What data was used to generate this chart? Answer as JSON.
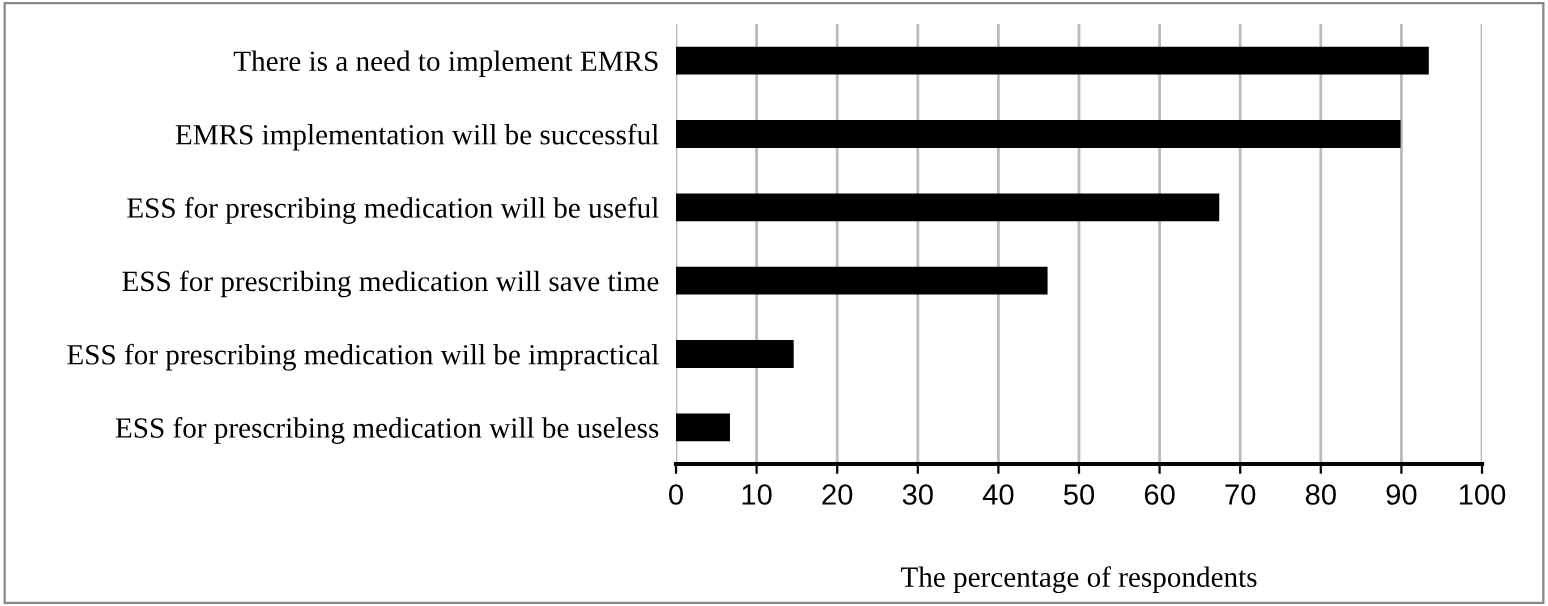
{
  "chart_data": {
    "type": "bar",
    "orientation": "horizontal",
    "xlabel": "The percentage of respondents",
    "categories": [
      "There is a need to implement EMRS",
      "EMRS implementation will be successful",
      "ESS for prescribing medication will be useful",
      "ESS for prescribing medication will save time",
      "ESS for prescribing medication will be impractical",
      "ESS for prescribing medication will be useless"
    ],
    "values": [
      93.4,
      89.9,
      67.4,
      46.1,
      14.6,
      6.7
    ],
    "color": "#000000",
    "xlim": [
      0,
      100
    ],
    "xticks": [
      0,
      10,
      20,
      30,
      40,
      50,
      60,
      70,
      80,
      90,
      100
    ],
    "grid": "x",
    "legend": false
  }
}
